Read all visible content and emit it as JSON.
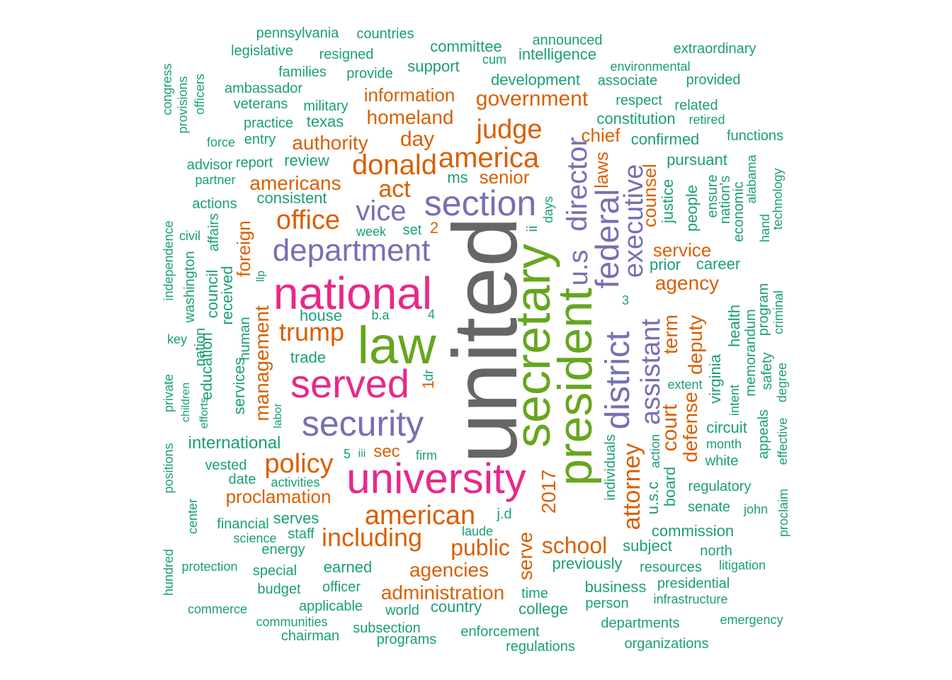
{
  "palette": {
    "gray": "#666666",
    "green": "#66a61e",
    "magenta": "#e7298a",
    "purple": "#7570b3",
    "orange": "#d95f02",
    "teal": "#1b9e77"
  },
  "words": [
    {
      "text": "united",
      "color": "gray",
      "size": 128,
      "rot": true
    },
    {
      "text": "law",
      "color": "green",
      "size": 74,
      "rot": false
    },
    {
      "text": "secretary",
      "color": "green",
      "size": 70,
      "rot": true
    },
    {
      "text": "president",
      "color": "green",
      "size": 68,
      "rot": true
    },
    {
      "text": "national",
      "color": "magenta",
      "size": 64,
      "rot": false
    },
    {
      "text": "university",
      "color": "magenta",
      "size": 60,
      "rot": false
    },
    {
      "text": "served",
      "color": "magenta",
      "size": 56,
      "rot": false
    },
    {
      "text": "security",
      "color": "purple",
      "size": 50,
      "rot": false
    },
    {
      "text": "section",
      "color": "purple",
      "size": 50,
      "rot": false
    },
    {
      "text": "department",
      "color": "purple",
      "size": 44,
      "rot": false
    },
    {
      "text": "district",
      "color": "purple",
      "size": 48,
      "rot": true
    },
    {
      "text": "federal",
      "color": "purple",
      "size": 46,
      "rot": true
    },
    {
      "text": "director",
      "color": "purple",
      "size": 40,
      "rot": true
    },
    {
      "text": "u.s",
      "color": "purple",
      "size": 38,
      "rot": true
    },
    {
      "text": "vice",
      "color": "purple",
      "size": 40,
      "rot": false
    },
    {
      "text": "executive",
      "color": "purple",
      "size": 38,
      "rot": true
    },
    {
      "text": "assistant",
      "color": "purple",
      "size": 38,
      "rot": true
    },
    {
      "text": "america",
      "color": "orange",
      "size": 40,
      "rot": false
    },
    {
      "text": "donald",
      "color": "orange",
      "size": 40,
      "rot": false
    },
    {
      "text": "judge",
      "color": "orange",
      "size": 38,
      "rot": false
    },
    {
      "text": "american",
      "color": "orange",
      "size": 38,
      "rot": false
    },
    {
      "text": "including",
      "color": "orange",
      "size": 36,
      "rot": false
    },
    {
      "text": "policy",
      "color": "orange",
      "size": 38,
      "rot": false
    },
    {
      "text": "trump",
      "color": "orange",
      "size": 36,
      "rot": false
    },
    {
      "text": "office",
      "color": "orange",
      "size": 38,
      "rot": false
    },
    {
      "text": "act",
      "color": "orange",
      "size": 34,
      "rot": false
    },
    {
      "text": "school",
      "color": "orange",
      "size": 32,
      "rot": false
    },
    {
      "text": "public",
      "color": "orange",
      "size": 32,
      "rot": false
    },
    {
      "text": "attorney",
      "color": "orange",
      "size": 34,
      "rot": true
    },
    {
      "text": "government",
      "color": "orange",
      "size": 30,
      "rot": false
    },
    {
      "text": "day",
      "color": "orange",
      "size": 30,
      "rot": false
    },
    {
      "text": "homeland",
      "color": "orange",
      "size": 28,
      "rot": false
    },
    {
      "text": "authority",
      "color": "orange",
      "size": 28,
      "rot": false
    },
    {
      "text": "americans",
      "color": "orange",
      "size": 28,
      "rot": false
    },
    {
      "text": "agency",
      "color": "orange",
      "size": 28,
      "rot": false
    },
    {
      "text": "agencies",
      "color": "orange",
      "size": 28,
      "rot": false
    },
    {
      "text": "administration",
      "color": "orange",
      "size": 28,
      "rot": false
    },
    {
      "text": "service",
      "color": "orange",
      "size": 26,
      "rot": false
    },
    {
      "text": "proclamation",
      "color": "orange",
      "size": 26,
      "rot": false
    },
    {
      "text": "information",
      "color": "orange",
      "size": 26,
      "rot": false
    },
    {
      "text": "senior",
      "color": "orange",
      "size": 26,
      "rot": false
    },
    {
      "text": "chief",
      "color": "orange",
      "size": 26,
      "rot": false
    },
    {
      "text": "court",
      "color": "orange",
      "size": 30,
      "rot": true
    },
    {
      "text": "term",
      "color": "orange",
      "size": 28,
      "rot": true
    },
    {
      "text": "deputy",
      "color": "orange",
      "size": 28,
      "rot": true
    },
    {
      "text": "defense",
      "color": "orange",
      "size": 28,
      "rot": true
    },
    {
      "text": "management",
      "color": "orange",
      "size": 28,
      "rot": true
    },
    {
      "text": "counsel",
      "color": "orange",
      "size": 26,
      "rot": true
    },
    {
      "text": "foreign",
      "color": "orange",
      "size": 26,
      "rot": true
    },
    {
      "text": "laws",
      "color": "orange",
      "size": 26,
      "rot": true
    },
    {
      "text": "serve",
      "color": "orange",
      "size": 28,
      "rot": true
    },
    {
      "text": "2017",
      "color": "orange",
      "size": 28,
      "rot": true
    },
    {
      "text": "sec",
      "color": "orange",
      "size": 24,
      "rot": false
    },
    {
      "text": "2",
      "color": "orange",
      "size": 22,
      "rot": false
    },
    {
      "text": "1",
      "color": "orange",
      "size": 22,
      "rot": true
    },
    {
      "text": "pennsylvania",
      "color": "teal",
      "size": 20,
      "rot": false
    },
    {
      "text": "countries",
      "color": "teal",
      "size": 20,
      "rot": false
    },
    {
      "text": "legislative",
      "color": "teal",
      "size": 20,
      "rot": false
    },
    {
      "text": "resigned",
      "color": "teal",
      "size": 20,
      "rot": false
    },
    {
      "text": "committee",
      "color": "teal",
      "size": 22,
      "rot": false
    },
    {
      "text": "announced",
      "color": "teal",
      "size": 20,
      "rot": false
    },
    {
      "text": "cum",
      "color": "teal",
      "size": 18,
      "rot": false
    },
    {
      "text": "intelligence",
      "color": "teal",
      "size": 22,
      "rot": false
    },
    {
      "text": "extraordinary",
      "color": "teal",
      "size": 20,
      "rot": false
    },
    {
      "text": "families",
      "color": "teal",
      "size": 20,
      "rot": false
    },
    {
      "text": "provide",
      "color": "teal",
      "size": 20,
      "rot": false
    },
    {
      "text": "support",
      "color": "teal",
      "size": 22,
      "rot": false
    },
    {
      "text": "environmental",
      "color": "teal",
      "size": 18,
      "rot": false
    },
    {
      "text": "development",
      "color": "teal",
      "size": 22,
      "rot": false
    },
    {
      "text": "associate",
      "color": "teal",
      "size": 20,
      "rot": false
    },
    {
      "text": "provided",
      "color": "teal",
      "size": 20,
      "rot": false
    },
    {
      "text": "ambassador",
      "color": "teal",
      "size": 20,
      "rot": false
    },
    {
      "text": "veterans",
      "color": "teal",
      "size": 20,
      "rot": false
    },
    {
      "text": "military",
      "color": "teal",
      "size": 20,
      "rot": false
    },
    {
      "text": "respect",
      "color": "teal",
      "size": 20,
      "rot": false
    },
    {
      "text": "related",
      "color": "teal",
      "size": 20,
      "rot": false
    },
    {
      "text": "practice",
      "color": "teal",
      "size": 20,
      "rot": false
    },
    {
      "text": "texas",
      "color": "teal",
      "size": 22,
      "rot": false
    },
    {
      "text": "constitution",
      "color": "teal",
      "size": 22,
      "rot": false
    },
    {
      "text": "retired",
      "color": "teal",
      "size": 18,
      "rot": false
    },
    {
      "text": "force",
      "color": "teal",
      "size": 18,
      "rot": false
    },
    {
      "text": "entry",
      "color": "teal",
      "size": 20,
      "rot": false
    },
    {
      "text": "confirmed",
      "color": "teal",
      "size": 22,
      "rot": false
    },
    {
      "text": "functions",
      "color": "teal",
      "size": 20,
      "rot": false
    },
    {
      "text": "advisor",
      "color": "teal",
      "size": 20,
      "rot": false
    },
    {
      "text": "report",
      "color": "teal",
      "size": 20,
      "rot": false
    },
    {
      "text": "review",
      "color": "teal",
      "size": 22,
      "rot": false
    },
    {
      "text": "pursuant",
      "color": "teal",
      "size": 22,
      "rot": false
    },
    {
      "text": "partner",
      "color": "teal",
      "size": 18,
      "rot": false
    },
    {
      "text": "ms",
      "color": "teal",
      "size": 22,
      "rot": false
    },
    {
      "text": "consistent",
      "color": "teal",
      "size": 22,
      "rot": false
    },
    {
      "text": "actions",
      "color": "teal",
      "size": 20,
      "rot": false
    },
    {
      "text": "week",
      "color": "teal",
      "size": 18,
      "rot": false
    },
    {
      "text": "set",
      "color": "teal",
      "size": 20,
      "rot": false
    },
    {
      "text": "prior",
      "color": "teal",
      "size": 22,
      "rot": false
    },
    {
      "text": "career",
      "color": "teal",
      "size": 22,
      "rot": false
    },
    {
      "text": "house",
      "color": "teal",
      "size": 22,
      "rot": false
    },
    {
      "text": "b.a",
      "color": "teal",
      "size": 18,
      "rot": false
    },
    {
      "text": "4",
      "color": "teal",
      "size": 18,
      "rot": false
    },
    {
      "text": "key",
      "color": "teal",
      "size": 18,
      "rot": false
    },
    {
      "text": "trade",
      "color": "teal",
      "size": 22,
      "rot": false
    },
    {
      "text": "extent",
      "color": "teal",
      "size": 18,
      "rot": false
    },
    {
      "text": "circuit",
      "color": "teal",
      "size": 22,
      "rot": false
    },
    {
      "text": "international",
      "color": "teal",
      "size": 24,
      "rot": false
    },
    {
      "text": "month",
      "color": "teal",
      "size": 18,
      "rot": false
    },
    {
      "text": "5",
      "color": "teal",
      "size": 18,
      "rot": false
    },
    {
      "text": "iii",
      "color": "teal",
      "size": 16,
      "rot": false
    },
    {
      "text": "firm",
      "color": "teal",
      "size": 18,
      "rot": false
    },
    {
      "text": "white",
      "color": "teal",
      "size": 20,
      "rot": false
    },
    {
      "text": "vested",
      "color": "teal",
      "size": 20,
      "rot": false
    },
    {
      "text": "date",
      "color": "teal",
      "size": 20,
      "rot": false
    },
    {
      "text": "activities",
      "color": "teal",
      "size": 18,
      "rot": false
    },
    {
      "text": "regulatory",
      "color": "teal",
      "size": 20,
      "rot": false
    },
    {
      "text": "j.d",
      "color": "teal",
      "size": 20,
      "rot": false
    },
    {
      "text": "senate",
      "color": "teal",
      "size": 20,
      "rot": false
    },
    {
      "text": "john",
      "color": "teal",
      "size": 18,
      "rot": false
    },
    {
      "text": "serves",
      "color": "teal",
      "size": 22,
      "rot": false
    },
    {
      "text": "financial",
      "color": "teal",
      "size": 20,
      "rot": false
    },
    {
      "text": "staff",
      "color": "teal",
      "size": 20,
      "rot": false
    },
    {
      "text": "laude",
      "color": "teal",
      "size": 18,
      "rot": false
    },
    {
      "text": "commission",
      "color": "teal",
      "size": 22,
      "rot": false
    },
    {
      "text": "science",
      "color": "teal",
      "size": 18,
      "rot": false
    },
    {
      "text": "energy",
      "color": "teal",
      "size": 20,
      "rot": false
    },
    {
      "text": "subject",
      "color": "teal",
      "size": 22,
      "rot": false
    },
    {
      "text": "north",
      "color": "teal",
      "size": 20,
      "rot": false
    },
    {
      "text": "protection",
      "color": "teal",
      "size": 18,
      "rot": false
    },
    {
      "text": "earned",
      "color": "teal",
      "size": 22,
      "rot": false
    },
    {
      "text": "previously",
      "color": "teal",
      "size": 22,
      "rot": false
    },
    {
      "text": "resources",
      "color": "teal",
      "size": 20,
      "rot": false
    },
    {
      "text": "litigation",
      "color": "teal",
      "size": 18,
      "rot": false
    },
    {
      "text": "special",
      "color": "teal",
      "size": 20,
      "rot": false
    },
    {
      "text": "officer",
      "color": "teal",
      "size": 20,
      "rot": false
    },
    {
      "text": "business",
      "color": "teal",
      "size": 22,
      "rot": false
    },
    {
      "text": "presidential",
      "color": "teal",
      "size": 20,
      "rot": false
    },
    {
      "text": "budget",
      "color": "teal",
      "size": 20,
      "rot": false
    },
    {
      "text": "time",
      "color": "teal",
      "size": 20,
      "rot": false
    },
    {
      "text": "infrastructure",
      "color": "teal",
      "size": 18,
      "rot": false
    },
    {
      "text": "applicable",
      "color": "teal",
      "size": 20,
      "rot": false
    },
    {
      "text": "country",
      "color": "teal",
      "size": 22,
      "rot": false
    },
    {
      "text": "college",
      "color": "teal",
      "size": 22,
      "rot": false
    },
    {
      "text": "person",
      "color": "teal",
      "size": 20,
      "rot": false
    },
    {
      "text": "commerce",
      "color": "teal",
      "size": 18,
      "rot": false
    },
    {
      "text": "world",
      "color": "teal",
      "size": 20,
      "rot": false
    },
    {
      "text": "communities",
      "color": "teal",
      "size": 18,
      "rot": false
    },
    {
      "text": "emergency",
      "color": "teal",
      "size": 18,
      "rot": false
    },
    {
      "text": "departments",
      "color": "teal",
      "size": 20,
      "rot": false
    },
    {
      "text": "subsection",
      "color": "teal",
      "size": 20,
      "rot": false
    },
    {
      "text": "enforcement",
      "color": "teal",
      "size": 20,
      "rot": false
    },
    {
      "text": "chairman",
      "color": "teal",
      "size": 20,
      "rot": false
    },
    {
      "text": "programs",
      "color": "teal",
      "size": 20,
      "rot": false
    },
    {
      "text": "organizations",
      "color": "teal",
      "size": 20,
      "rot": false
    },
    {
      "text": "regulations",
      "color": "teal",
      "size": 20,
      "rot": false
    },
    {
      "text": "congress",
      "color": "teal",
      "size": 18,
      "rot": true
    },
    {
      "text": "provisions",
      "color": "teal",
      "size": 18,
      "rot": true
    },
    {
      "text": "officers",
      "color": "teal",
      "size": 18,
      "rot": true
    },
    {
      "text": "independence",
      "color": "teal",
      "size": 18,
      "rot": true
    },
    {
      "text": "washington",
      "color": "teal",
      "size": 20,
      "rot": true
    },
    {
      "text": "civil",
      "color": "teal",
      "size": 18,
      "rot": false
    },
    {
      "text": "affairs",
      "color": "teal",
      "size": 20,
      "rot": true
    },
    {
      "text": "council",
      "color": "teal",
      "size": 22,
      "rot": true
    },
    {
      "text": "received",
      "color": "teal",
      "size": 22,
      "rot": true
    },
    {
      "text": "nation",
      "color": "teal",
      "size": 20,
      "rot": true
    },
    {
      "text": "education",
      "color": "teal",
      "size": 22,
      "rot": true
    },
    {
      "text": "human",
      "color": "teal",
      "size": 20,
      "rot": true
    },
    {
      "text": "llp",
      "color": "teal",
      "size": 16,
      "rot": true
    },
    {
      "text": "services",
      "color": "teal",
      "size": 22,
      "rot": true
    },
    {
      "text": "private",
      "color": "teal",
      "size": 18,
      "rot": true
    },
    {
      "text": "children",
      "color": "teal",
      "size": 16,
      "rot": true
    },
    {
      "text": "efforts",
      "color": "teal",
      "size": 16,
      "rot": true
    },
    {
      "text": "labor",
      "color": "teal",
      "size": 16,
      "rot": true
    },
    {
      "text": "dr",
      "color": "teal",
      "size": 18,
      "rot": true
    },
    {
      "text": "positions",
      "color": "teal",
      "size": 18,
      "rot": true
    },
    {
      "text": "center",
      "color": "teal",
      "size": 18,
      "rot": true
    },
    {
      "text": "hundred",
      "color": "teal",
      "size": 18,
      "rot": true
    },
    {
      "text": "days",
      "color": "teal",
      "size": 18,
      "rot": true
    },
    {
      "text": "ii",
      "color": "teal",
      "size": 20,
      "rot": true
    },
    {
      "text": "justice",
      "color": "teal",
      "size": 22,
      "rot": true
    },
    {
      "text": "people",
      "color": "teal",
      "size": 22,
      "rot": true
    },
    {
      "text": "ensure",
      "color": "teal",
      "size": 20,
      "rot": true
    },
    {
      "text": "nation's",
      "color": "teal",
      "size": 20,
      "rot": true
    },
    {
      "text": "economic",
      "color": "teal",
      "size": 20,
      "rot": true
    },
    {
      "text": "alabama",
      "color": "teal",
      "size": 18,
      "rot": true
    },
    {
      "text": "technology",
      "color": "teal",
      "size": 18,
      "rot": true
    },
    {
      "text": "hand",
      "color": "teal",
      "size": 18,
      "rot": true
    },
    {
      "text": "3",
      "color": "teal",
      "size": 18,
      "rot": false
    },
    {
      "text": "health",
      "color": "teal",
      "size": 22,
      "rot": true
    },
    {
      "text": "memorandum",
      "color": "teal",
      "size": 20,
      "rot": true
    },
    {
      "text": "program",
      "color": "teal",
      "size": 20,
      "rot": true
    },
    {
      "text": "criminal",
      "color": "teal",
      "size": 18,
      "rot": true
    },
    {
      "text": "virginia",
      "color": "teal",
      "size": 22,
      "rot": true
    },
    {
      "text": "intent",
      "color": "teal",
      "size": 18,
      "rot": true
    },
    {
      "text": "safety",
      "color": "teal",
      "size": 20,
      "rot": true
    },
    {
      "text": "degree",
      "color": "teal",
      "size": 18,
      "rot": true
    },
    {
      "text": "appeals",
      "color": "teal",
      "size": 20,
      "rot": true
    },
    {
      "text": "effective",
      "color": "teal",
      "size": 18,
      "rot": true
    },
    {
      "text": "individuals",
      "color": "teal",
      "size": 20,
      "rot": true
    },
    {
      "text": "action",
      "color": "teal",
      "size": 18,
      "rot": true
    },
    {
      "text": "u.s.c",
      "color": "teal",
      "size": 22,
      "rot": true
    },
    {
      "text": "board",
      "color": "teal",
      "size": 22,
      "rot": true
    },
    {
      "text": "proclaim",
      "color": "teal",
      "size": 18,
      "rot": true
    }
  ]
}
